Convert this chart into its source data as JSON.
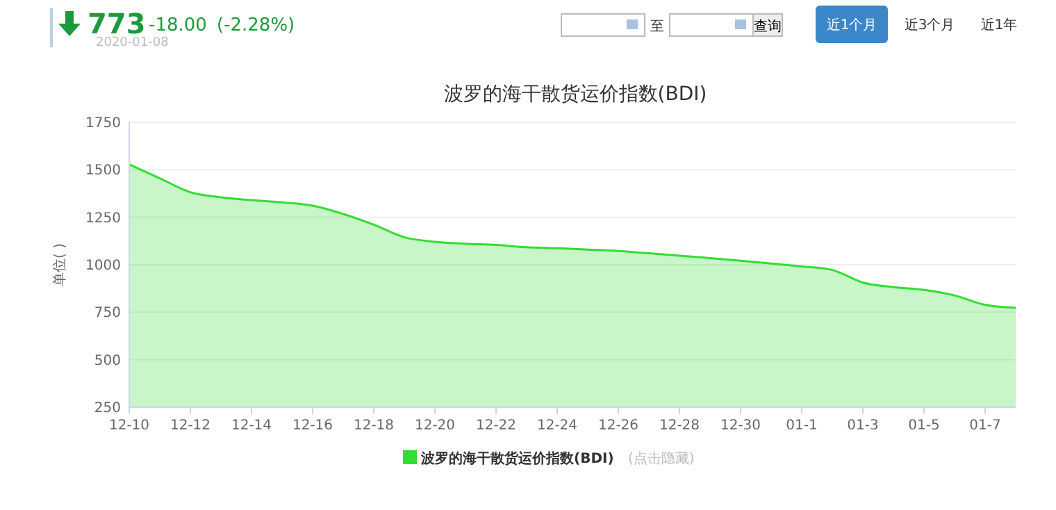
{
  "chart_data": {
    "type": "area",
    "title": "波罗的海干散货运价指数(BDI)",
    "ylabel": "单位( )",
    "x": [
      "2019-12-10",
      "2019-12-11",
      "2019-12-12",
      "2019-12-13",
      "2019-12-14",
      "2019-12-15",
      "2019-12-16",
      "2019-12-17",
      "2019-12-18",
      "2019-12-19",
      "2019-12-20",
      "2019-12-21",
      "2019-12-22",
      "2019-12-23",
      "2019-12-24",
      "2019-12-25",
      "2019-12-26",
      "2019-12-27",
      "2019-12-28",
      "2019-12-29",
      "2019-12-30",
      "2019-12-31",
      "2020-01-01",
      "2020-01-02",
      "2020-01-03",
      "2020-01-04",
      "2020-01-05",
      "2020-01-06",
      "2020-01-07",
      "2020-01-08"
    ],
    "series": [
      {
        "name": "波罗的海干散货运价指数(BDI)",
        "color": "#33dd33",
        "values": [
          1528,
          1455,
          1382,
          1355,
          1340,
          1328,
          1311,
          1267,
          1211,
          1145,
          1121,
          1111,
          1104,
          1092,
          1087,
          1080,
          1072,
          1060,
          1048,
          1035,
          1021,
          1006,
          991,
          972,
          906,
          882,
          867,
          838,
          789,
          773
        ]
      }
    ],
    "xlim": [
      "2019-12-10",
      "2020-01-08"
    ],
    "xticks": [
      {
        "value": "2019-12-10",
        "label": "12-10"
      },
      {
        "value": "2019-12-12",
        "label": "12-12"
      },
      {
        "value": "2019-12-14",
        "label": "12-14"
      },
      {
        "value": "2019-12-16",
        "label": "12-16"
      },
      {
        "value": "2019-12-18",
        "label": "12-18"
      },
      {
        "value": "2019-12-20",
        "label": "12-20"
      },
      {
        "value": "2019-12-22",
        "label": "12-22"
      },
      {
        "value": "2019-12-24",
        "label": "12-24"
      },
      {
        "value": "2019-12-26",
        "label": "12-26"
      },
      {
        "value": "2019-12-28",
        "label": "12-28"
      },
      {
        "value": "2019-12-30",
        "label": "12-30"
      },
      {
        "value": "2020-01-01",
        "label": "01-1"
      },
      {
        "value": "2020-01-03",
        "label": "01-3"
      },
      {
        "value": "2020-01-05",
        "label": "01-5"
      },
      {
        "value": "2020-01-07",
        "label": "01-7"
      }
    ],
    "ylim": [
      250,
      1750
    ],
    "yticks": [
      250,
      500,
      750,
      1000,
      1250,
      1500,
      1750
    ],
    "grid": "y",
    "legend": "bottom",
    "marker": "none",
    "line_style": "solid",
    "annotations": [
      "773",
      "-18.00",
      "(-2.28%)",
      "2020-01-08",
      "至",
      "查询",
      "近1个月",
      "近3个月",
      "近1年",
      "(点击隐藏)"
    ]
  }
}
